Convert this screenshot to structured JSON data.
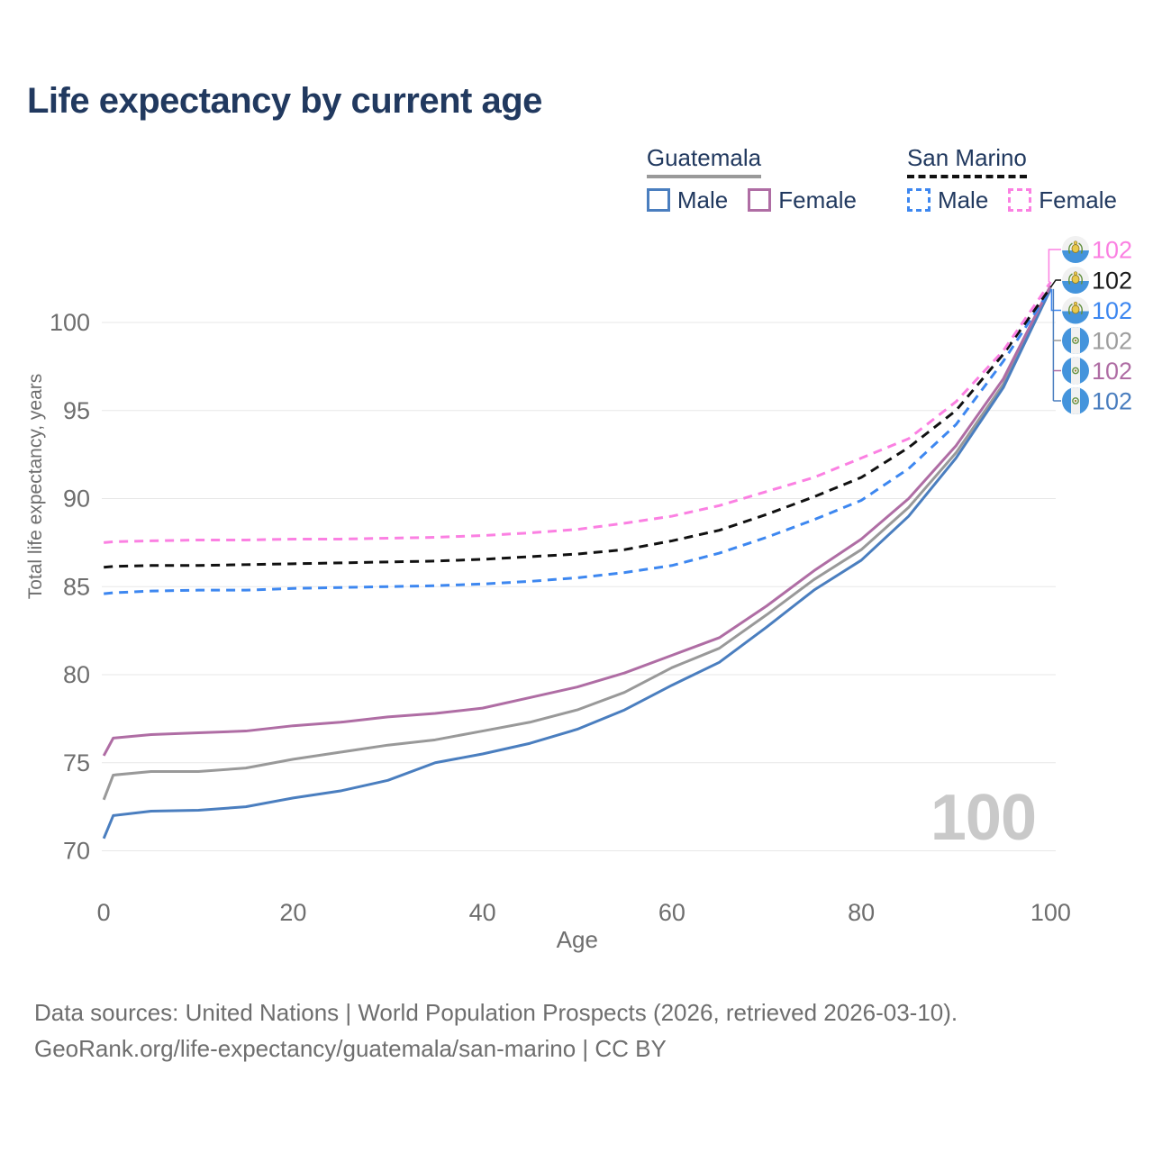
{
  "title": "Life expectancy by current age",
  "watermark": "100",
  "legend": {
    "groups": [
      {
        "label": "Guatemala",
        "line_style": "solid",
        "underline_color": "#999999",
        "items": [
          {
            "label": "Male",
            "color": "#4a7ebf",
            "dashed": false
          },
          {
            "label": "Female",
            "color": "#af6da4",
            "dashed": false
          }
        ]
      },
      {
        "label": "San Marino",
        "line_style": "dashed",
        "underline_color": "#111111",
        "items": [
          {
            "label": "Male",
            "color": "#3d87f0",
            "dashed": true
          },
          {
            "label": "Female",
            "color": "#fb80e2",
            "dashed": true
          }
        ]
      }
    ]
  },
  "footer": {
    "line1": "Data sources: United Nations | World Population Prospects (2026, retrieved 2026-03-10).",
    "line2": "GeoRank.org/life-expectancy/guatemala/san-marino | CC BY"
  },
  "chart_data": {
    "type": "line",
    "title": "Life expectancy by current age",
    "xlabel": "Age",
    "ylabel": "Total life expectancy, years",
    "xlim": [
      0,
      100
    ],
    "ylim": [
      69.5,
      103.5
    ],
    "x_ticks": [
      0,
      20,
      40,
      60,
      80,
      100
    ],
    "y_ticks": [
      70,
      75,
      80,
      85,
      90,
      95,
      100
    ],
    "grid": "horizontal",
    "legend_position": "top-right",
    "x": [
      0,
      1,
      5,
      10,
      15,
      20,
      25,
      30,
      35,
      40,
      45,
      50,
      55,
      60,
      65,
      70,
      75,
      80,
      85,
      90,
      95,
      100
    ],
    "series": [
      {
        "name": "Guatemala Total",
        "country": "Guatemala",
        "sex": "Total",
        "color": "#999999",
        "dashed": false,
        "values": [
          72.9,
          74.3,
          74.5,
          74.5,
          74.7,
          75.2,
          75.6,
          76.0,
          76.3,
          76.8,
          77.3,
          78.0,
          79.0,
          80.4,
          81.5,
          83.4,
          85.4,
          87.1,
          89.5,
          92.6,
          96.5,
          102.0
        ]
      },
      {
        "name": "Guatemala Male",
        "country": "Guatemala",
        "sex": "Male",
        "color": "#4a7ebf",
        "dashed": false,
        "values": [
          70.7,
          72.0,
          72.25,
          72.3,
          72.5,
          73.0,
          73.4,
          74.0,
          75.0,
          75.5,
          76.1,
          76.9,
          78.0,
          79.4,
          80.7,
          82.7,
          84.8,
          86.5,
          89.0,
          92.3,
          96.3,
          101.9
        ]
      },
      {
        "name": "Guatemala Female",
        "country": "Guatemala",
        "sex": "Female",
        "color": "#af6da4",
        "dashed": false,
        "values": [
          75.4,
          76.4,
          76.6,
          76.7,
          76.8,
          77.1,
          77.3,
          77.6,
          77.8,
          78.1,
          78.7,
          79.3,
          80.1,
          81.1,
          82.1,
          83.9,
          85.9,
          87.7,
          90.0,
          93.0,
          96.8,
          102.1
        ]
      },
      {
        "name": "San Marino Male",
        "country": "San Marino",
        "sex": "Male",
        "color": "#3d87f0",
        "dashed": true,
        "values": [
          84.6,
          84.65,
          84.75,
          84.8,
          84.8,
          84.9,
          84.95,
          85.0,
          85.05,
          85.15,
          85.3,
          85.5,
          85.8,
          86.2,
          86.9,
          87.8,
          88.8,
          89.9,
          91.7,
          94.2,
          97.8,
          101.9
        ]
      },
      {
        "name": "San Marino Total",
        "country": "San Marino",
        "sex": "Total",
        "color": "#111111",
        "dashed": true,
        "values": [
          86.1,
          86.15,
          86.2,
          86.2,
          86.25,
          86.3,
          86.35,
          86.4,
          86.45,
          86.55,
          86.7,
          86.85,
          87.1,
          87.6,
          88.2,
          89.1,
          90.1,
          91.2,
          92.9,
          95.0,
          98.2,
          102.0
        ]
      },
      {
        "name": "San Marino Female",
        "country": "San Marino",
        "sex": "Female",
        "color": "#fb80e2",
        "dashed": true,
        "values": [
          87.5,
          87.55,
          87.6,
          87.65,
          87.65,
          87.7,
          87.7,
          87.75,
          87.8,
          87.9,
          88.05,
          88.25,
          88.6,
          89.0,
          89.6,
          90.4,
          91.2,
          92.3,
          93.4,
          95.5,
          98.4,
          102.3
        ]
      }
    ],
    "end_labels": [
      {
        "series_name": "San Marino Female",
        "flag": "san-marino",
        "value": "102",
        "color": "#fb80e2"
      },
      {
        "series_name": "San Marino Total",
        "flag": "san-marino",
        "value": "102",
        "color": "#1a1a1a"
      },
      {
        "series_name": "San Marino Male",
        "flag": "san-marino",
        "value": "102",
        "color": "#3d87f0"
      },
      {
        "series_name": "Guatemala Total",
        "flag": "guatemala",
        "value": "102",
        "color": "#9e9e9e"
      },
      {
        "series_name": "Guatemala Female",
        "flag": "guatemala",
        "value": "102",
        "color": "#af6da4"
      },
      {
        "series_name": "Guatemala Male",
        "flag": "guatemala",
        "value": "102",
        "color": "#4a7ebf"
      }
    ]
  }
}
